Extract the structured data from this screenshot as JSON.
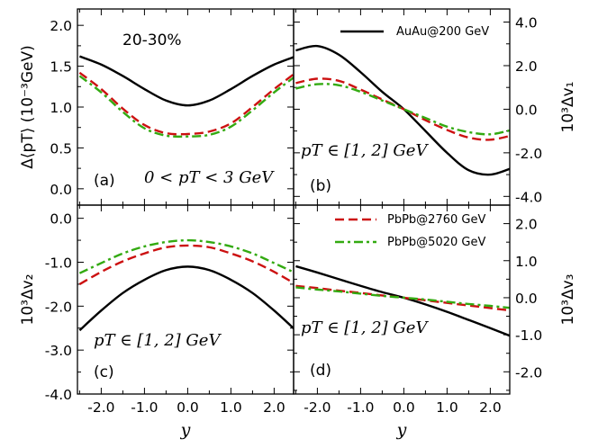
{
  "colors": {
    "auau200": "#000000",
    "pbpb2760": "#cc1111",
    "pbpb5020": "#33aa11"
  },
  "figure": {
    "centrality_label": "20-30%",
    "xlabel": "y",
    "xticks": [
      "-2.0",
      "-1.0",
      "0.0",
      "1.0",
      "2.0"
    ]
  },
  "chart_data": [
    {
      "panel": "(a)",
      "type": "line",
      "ylabel": "Δ⟨pT⟩ (10⁻³GeV)",
      "annotation": "0 < pT < 3 GeV",
      "xlim": [
        -2.55,
        2.45
      ],
      "ylim": [
        -0.2,
        2.2
      ],
      "yticks": [
        "0.0",
        "0.5",
        "1.0",
        "1.5",
        "2.0"
      ],
      "x": [
        -2.5,
        -2.0,
        -1.5,
        -1.0,
        -0.5,
        0.0,
        0.5,
        1.0,
        1.5,
        2.0,
        2.5
      ],
      "series": [
        {
          "name": "AuAu@200 GeV",
          "key": "auau200",
          "values": [
            1.62,
            1.52,
            1.38,
            1.22,
            1.08,
            1.02,
            1.08,
            1.22,
            1.38,
            1.52,
            1.62
          ]
        },
        {
          "name": "PbPb@2760 GeV",
          "key": "pbpb2760",
          "values": [
            1.42,
            1.22,
            0.98,
            0.78,
            0.68,
            0.67,
            0.7,
            0.8,
            1.0,
            1.22,
            1.42
          ]
        },
        {
          "name": "PbPb@5020 GeV",
          "key": "pbpb5020",
          "values": [
            1.38,
            1.18,
            0.94,
            0.74,
            0.65,
            0.64,
            0.66,
            0.76,
            0.96,
            1.18,
            1.38
          ]
        }
      ]
    },
    {
      "panel": "(b)",
      "type": "line",
      "ylabel": "10³Δv₁",
      "annotation": "pT ∈ [1, 2] GeV",
      "xlim": [
        -2.55,
        2.45
      ],
      "ylim": [
        -4.4,
        4.6
      ],
      "yticks": [
        "-4.0",
        "-2.0",
        "0.0",
        "2.0",
        "4.0"
      ],
      "x": [
        -2.5,
        -2.0,
        -1.5,
        -1.0,
        -0.5,
        0.0,
        0.5,
        1.0,
        1.5,
        2.0,
        2.5
      ],
      "series": [
        {
          "name": "AuAu@200 GeV",
          "key": "auau200",
          "values": [
            2.7,
            2.9,
            2.5,
            1.7,
            0.8,
            0.0,
            -1.0,
            -2.0,
            -2.8,
            -3.0,
            -2.7
          ]
        },
        {
          "name": "PbPb@2760 GeV",
          "key": "pbpb2760",
          "values": [
            1.2,
            1.4,
            1.3,
            0.9,
            0.45,
            0.0,
            -0.5,
            -0.95,
            -1.3,
            -1.4,
            -1.2
          ]
        },
        {
          "name": "PbPb@5020 GeV",
          "key": "pbpb5020",
          "values": [
            0.95,
            1.15,
            1.1,
            0.8,
            0.4,
            0.0,
            -0.4,
            -0.8,
            -1.05,
            -1.15,
            -0.95
          ]
        }
      ]
    },
    {
      "panel": "(c)",
      "type": "line",
      "ylabel": "10³Δv₂",
      "annotation": "pT ∈ [1, 2] GeV",
      "xlim": [
        -2.55,
        2.45
      ],
      "ylim": [
        -4.0,
        0.3
      ],
      "yticks": [
        "-4.0",
        "-3.0",
        "-2.0",
        "-1.0",
        "0.0"
      ],
      "x": [
        -2.5,
        -2.0,
        -1.5,
        -1.0,
        -0.5,
        0.0,
        0.5,
        1.0,
        1.5,
        2.0,
        2.5
      ],
      "series": [
        {
          "name": "AuAu@200 GeV",
          "key": "auau200",
          "values": [
            -2.55,
            -2.1,
            -1.7,
            -1.4,
            -1.18,
            -1.1,
            -1.18,
            -1.4,
            -1.7,
            -2.1,
            -2.55
          ]
        },
        {
          "name": "PbPb@2760 GeV",
          "key": "pbpb2760",
          "values": [
            -1.5,
            -1.22,
            -0.98,
            -0.8,
            -0.66,
            -0.62,
            -0.66,
            -0.8,
            -0.98,
            -1.22,
            -1.5
          ]
        },
        {
          "name": "PbPb@5020 GeV",
          "key": "pbpb5020",
          "values": [
            -1.25,
            -1.02,
            -0.8,
            -0.64,
            -0.54,
            -0.5,
            -0.54,
            -0.64,
            -0.8,
            -1.02,
            -1.25
          ]
        }
      ]
    },
    {
      "panel": "(d)",
      "type": "line",
      "ylabel": "10³Δv₃",
      "annotation": "pT ∈ [1, 2] GeV",
      "xlim": [
        -2.55,
        2.45
      ],
      "ylim": [
        -2.6,
        2.5
      ],
      "yticks": [
        "-2.0",
        "-1.0",
        "0.0",
        "1.0",
        "2.0"
      ],
      "x": [
        -2.5,
        -2.0,
        -1.5,
        -1.0,
        -0.5,
        0.0,
        0.5,
        1.0,
        1.5,
        2.0,
        2.5
      ],
      "series": [
        {
          "name": "AuAu@200 GeV",
          "key": "auau200",
          "values": [
            0.85,
            0.68,
            0.5,
            0.32,
            0.15,
            0.0,
            -0.18,
            -0.38,
            -0.6,
            -0.82,
            -1.05
          ]
        },
        {
          "name": "PbPb@2760 GeV",
          "key": "pbpb2760",
          "values": [
            0.32,
            0.26,
            0.19,
            0.13,
            0.06,
            0.0,
            -0.07,
            -0.14,
            -0.21,
            -0.28,
            -0.35
          ]
        },
        {
          "name": "PbPb@5020 GeV",
          "key": "pbpb5020",
          "values": [
            0.28,
            0.22,
            0.17,
            0.11,
            0.05,
            0.0,
            -0.05,
            -0.11,
            -0.17,
            -0.22,
            -0.28
          ]
        }
      ]
    }
  ],
  "legends": {
    "top": [
      "AuAu@200 GeV"
    ],
    "bottom": [
      "PbPb@2760 GeV",
      "PbPb@5020 GeV"
    ]
  }
}
